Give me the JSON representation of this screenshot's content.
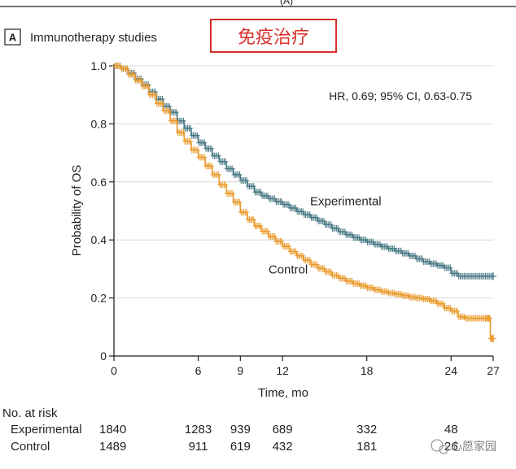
{
  "figure_caption_fragment": "(A)",
  "panel": {
    "letter": "A",
    "title": "Immunotherapy studies"
  },
  "stamp": {
    "text": "免疫治疗",
    "color": "#d9302c"
  },
  "watermark": {
    "text": "心愿家园"
  },
  "chart_data": {
    "type": "line",
    "subtype": "kaplan-meier",
    "title": "Immunotherapy studies",
    "xlabel": "Time, mo",
    "ylabel": "Probability of OS",
    "xlim": [
      0,
      27
    ],
    "ylim": [
      0,
      1.0
    ],
    "x_ticks": [
      0,
      6,
      9,
      12,
      18,
      24,
      27
    ],
    "y_ticks": [
      {
        "value": 0,
        "label": "0"
      },
      {
        "value": 0.2,
        "label": "0.2"
      },
      {
        "value": 0.4,
        "label": "0.4"
      },
      {
        "value": 0.6,
        "label": "0.6"
      },
      {
        "value": 0.8,
        "label": "0.8"
      },
      {
        "value": 1.0,
        "label": "1.0"
      }
    ],
    "grid": "horizontal",
    "annotation": "HR, 0.69; 95% CI, 0.63-0.75",
    "series": [
      {
        "name": "Experimental",
        "color": "#4a7a86",
        "x": [
          0,
          0.5,
          1,
          1.5,
          2,
          2.5,
          3,
          3.5,
          4,
          4.5,
          5,
          5.5,
          6,
          6.5,
          7,
          7.5,
          8,
          8.5,
          9,
          9.5,
          10,
          10.5,
          11,
          11.5,
          12,
          12.5,
          13,
          13.5,
          14,
          14.5,
          15,
          15.5,
          16,
          16.5,
          17,
          17.5,
          18,
          18.5,
          19,
          19.5,
          20,
          20.5,
          21,
          21.5,
          22,
          22.5,
          23,
          23.5,
          24,
          24.5,
          25,
          25.5,
          26,
          26.5,
          27
        ],
        "y": [
          1.0,
          0.99,
          0.975,
          0.955,
          0.935,
          0.91,
          0.885,
          0.86,
          0.84,
          0.81,
          0.785,
          0.76,
          0.735,
          0.715,
          0.69,
          0.67,
          0.645,
          0.625,
          0.605,
          0.585,
          0.565,
          0.552,
          0.542,
          0.532,
          0.522,
          0.51,
          0.498,
          0.487,
          0.477,
          0.465,
          0.453,
          0.44,
          0.428,
          0.418,
          0.408,
          0.4,
          0.393,
          0.385,
          0.377,
          0.37,
          0.362,
          0.354,
          0.345,
          0.335,
          0.325,
          0.318,
          0.312,
          0.304,
          0.285,
          0.275,
          0.275,
          0.275,
          0.275,
          0.275,
          0.275
        ]
      },
      {
        "name": "Control",
        "color": "#e99a2c",
        "x": [
          0,
          0.5,
          1,
          1.5,
          2,
          2.5,
          3,
          3.5,
          4,
          4.5,
          5,
          5.5,
          6,
          6.5,
          7,
          7.5,
          8,
          8.5,
          9,
          9.5,
          10,
          10.5,
          11,
          11.5,
          12,
          12.5,
          13,
          13.5,
          14,
          14.5,
          15,
          15.5,
          16,
          16.5,
          17,
          17.5,
          18,
          18.5,
          19,
          19.5,
          20,
          20.5,
          21,
          21.5,
          22,
          22.5,
          23,
          23.5,
          24,
          24.5,
          25,
          25.5,
          26,
          26.5,
          26.8,
          27
        ],
        "y": [
          1.0,
          0.99,
          0.97,
          0.95,
          0.93,
          0.9,
          0.87,
          0.845,
          0.81,
          0.77,
          0.74,
          0.71,
          0.685,
          0.655,
          0.625,
          0.59,
          0.56,
          0.53,
          0.495,
          0.47,
          0.448,
          0.43,
          0.412,
          0.395,
          0.378,
          0.36,
          0.345,
          0.33,
          0.315,
          0.302,
          0.29,
          0.278,
          0.268,
          0.258,
          0.25,
          0.242,
          0.235,
          0.228,
          0.222,
          0.217,
          0.213,
          0.208,
          0.203,
          0.2,
          0.196,
          0.19,
          0.18,
          0.165,
          0.155,
          0.135,
          0.13,
          0.13,
          0.13,
          0.13,
          0.06,
          0.06
        ]
      }
    ],
    "series_labels": [
      {
        "name": "Experimental",
        "x": 16.5,
        "y": 0.52
      },
      {
        "name": "Control",
        "x": 12.4,
        "y": 0.285
      }
    ],
    "risk_table": {
      "title": "No. at risk",
      "times": [
        0,
        6,
        9,
        12,
        18,
        24
      ],
      "rows": [
        {
          "label": "Experimental",
          "values": [
            "1840",
            "1283",
            "939",
            "689",
            "332",
            "48"
          ]
        },
        {
          "label": "Control",
          "values": [
            "1489",
            "911",
            "619",
            "432",
            "181",
            "26"
          ]
        }
      ]
    }
  }
}
